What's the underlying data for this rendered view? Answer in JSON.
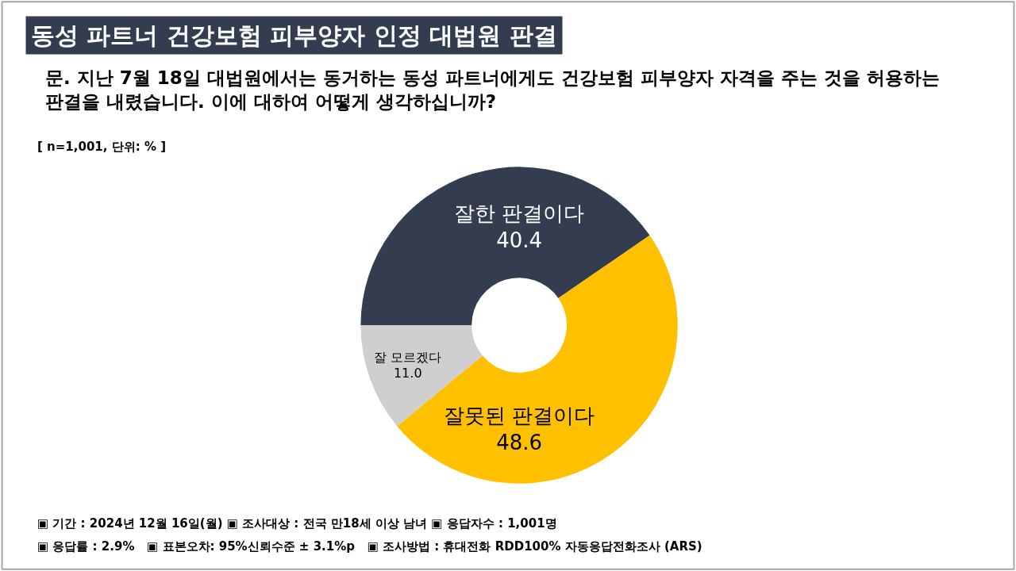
{
  "chart_data": {
    "type": "donut",
    "title": "동성 파트너 건강보험 피부양자 인정 대법원 판결",
    "subtitle": "문. 지난 7월 18일 대법원에서는 동거하는 동성 파트너에게도 건강보험 피부양자 자격을 주는 것을 허용하는 판결을 내렸습니다. 이에 대하여 어떻게 생각하십니까?",
    "categories": [
      "잘한 판결이다",
      "잘못된 판결이다",
      "잘 모르겠다"
    ],
    "values": [
      40.4,
      48.6,
      11.0
    ],
    "colors": [
      "#333d4f",
      "#ffc000",
      "#d0cecf"
    ],
    "value_labels": [
      "40.4",
      "48.6",
      "11.0"
    ],
    "legend": false,
    "annotations": [
      "[ n=1,001, 단위: % ]",
      "▣ 기간 : 2024년 12월 16일(월) ▣ 조사대상 : 전국 만18세 이상 남녀 ▣ 응답자수 : 1,001명",
      "▣ 응답률 : 2.9%   ▣ 표본오차: 95%신뢰수준 ± 3.1%p   ▣ 조사방법 : 휴대전화 RDD100% 자동응답전화조사 (ARS)"
    ]
  }
}
